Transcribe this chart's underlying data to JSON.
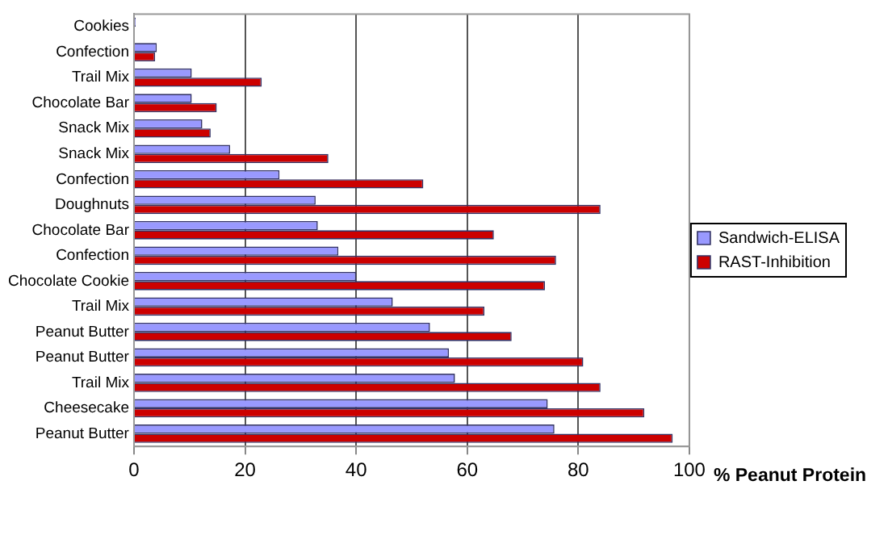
{
  "chart_data": {
    "type": "bar",
    "orientation": "horizontal",
    "xlabel": "% Peanut Protein",
    "categories": [
      "Cookies",
      "Confection",
      "Trail Mix",
      "Chocolate Bar",
      "Snack Mix",
      "Snack Mix",
      "Confection",
      "Doughnuts",
      "Chocolate Bar",
      "Confection",
      "Chocolate Cookie",
      "Trail Mix",
      "Peanut Butter",
      "Peanut Butter",
      "Trail Mix",
      "Cheesecake",
      "Peanut Butter"
    ],
    "series": [
      {
        "name": "Sandwich-ELISA",
        "color": "#9999ff",
        "values": [
          0.3,
          4.1,
          10.4,
          10.4,
          12.3,
          17.3,
          26.2,
          32.7,
          33.1,
          36.8,
          40,
          46.6,
          53.3,
          56.7,
          57.8,
          74.5,
          75.7
        ]
      },
      {
        "name": "RAST-Inhibition",
        "color": "#cc0000",
        "values": [
          0,
          3.8,
          23,
          14.9,
          13.8,
          35,
          52.1,
          84,
          64.8,
          76,
          74,
          63.1,
          68,
          80.9,
          84,
          91.9,
          97
        ]
      }
    ],
    "xlim": [
      0,
      100
    ],
    "xticks": [
      0,
      20,
      40,
      60,
      80,
      100
    ],
    "grid": "x",
    "legend": "right"
  }
}
